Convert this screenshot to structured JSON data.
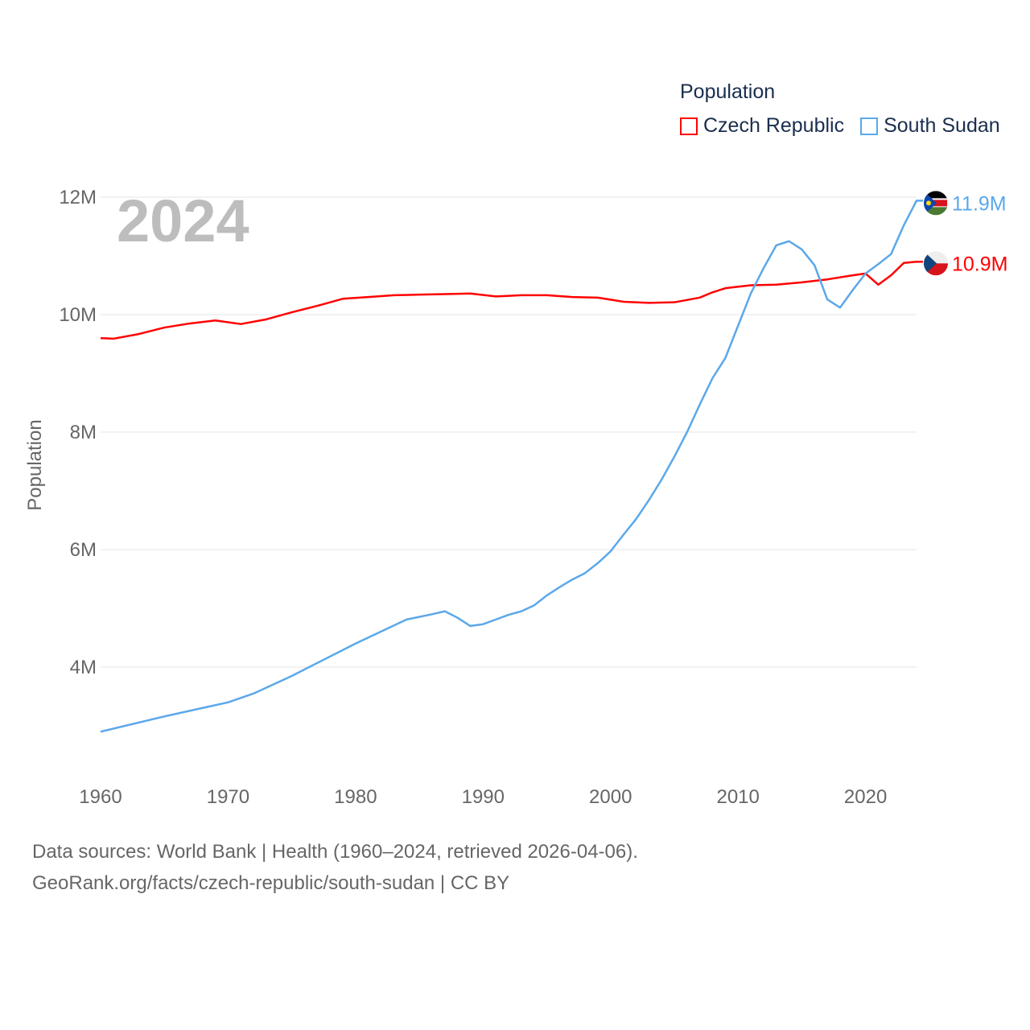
{
  "chart_data": {
    "type": "line",
    "title": "Population",
    "year_label": "2024",
    "ylabel": "Population",
    "xlabel": "",
    "xlim": [
      1960,
      2024
    ],
    "ylim": [
      2.15,
      12.5
    ],
    "x_ticks": [
      1960,
      1970,
      1980,
      1990,
      2000,
      2010,
      2020
    ],
    "y_ticks": [
      4,
      6,
      8,
      10,
      12
    ],
    "y_tick_labels": [
      "4M",
      "6M",
      "8M",
      "10M",
      "12M"
    ],
    "grid": true,
    "legend_placement": "top-right",
    "series": [
      {
        "name": "Czech Republic",
        "color": "#ff0000",
        "end_label": "10.9M",
        "flag": "czech-flag",
        "x": [
          1960,
          1961,
          1963,
          1965,
          1967,
          1969,
          1971,
          1973,
          1975,
          1977,
          1979,
          1981,
          1983,
          1985,
          1987,
          1989,
          1991,
          1993,
          1995,
          1997,
          1999,
          2001,
          2003,
          2005,
          2007,
          2008,
          2009,
          2011,
          2013,
          2015,
          2017,
          2019,
          2020,
          2021,
          2022,
          2023,
          2024
        ],
        "values": [
          9.6,
          9.59,
          9.67,
          9.78,
          9.85,
          9.9,
          9.84,
          9.92,
          10.04,
          10.15,
          10.27,
          10.3,
          10.33,
          10.34,
          10.35,
          10.36,
          10.31,
          10.33,
          10.33,
          10.3,
          10.29,
          10.22,
          10.2,
          10.21,
          10.29,
          10.38,
          10.45,
          10.5,
          10.51,
          10.55,
          10.6,
          10.67,
          10.7,
          10.51,
          10.67,
          10.88,
          10.9
        ]
      },
      {
        "name": "South Sudan",
        "color": "#5ba8ea",
        "end_label": "11.9M",
        "flag": "south-sudan-flag",
        "x": [
          1960,
          1965,
          1970,
          1972,
          1975,
          1980,
          1984,
          1986,
          1987,
          1988,
          1989,
          1990,
          1991,
          1992,
          1993,
          1994,
          1995,
          1996,
          1997,
          1998,
          1999,
          2000,
          2001,
          2002,
          2003,
          2004,
          2005,
          2006,
          2007,
          2008,
          2009,
          2010,
          2011,
          2012,
          2013,
          2014,
          2015,
          2016,
          2017,
          2018,
          2019,
          2020,
          2021,
          2022,
          2023,
          2024
        ],
        "values": [
          2.9,
          3.16,
          3.4,
          3.55,
          3.85,
          4.4,
          4.81,
          4.9,
          4.95,
          4.84,
          4.7,
          4.73,
          4.81,
          4.89,
          4.95,
          5.05,
          5.22,
          5.36,
          5.49,
          5.6,
          5.77,
          5.97,
          6.25,
          6.52,
          6.84,
          7.19,
          7.58,
          8.0,
          8.47,
          8.92,
          9.26,
          9.81,
          10.36,
          10.79,
          11.18,
          11.25,
          11.11,
          10.84,
          10.26,
          10.12,
          10.42,
          10.7,
          10.86,
          11.03,
          11.52,
          11.94
        ]
      }
    ]
  },
  "footer": {
    "line1": "Data sources: World Bank | Health (1960–2024, retrieved 2026-04-06).",
    "line2": "GeoRank.org/facts/czech-republic/south-sudan | CC BY"
  }
}
